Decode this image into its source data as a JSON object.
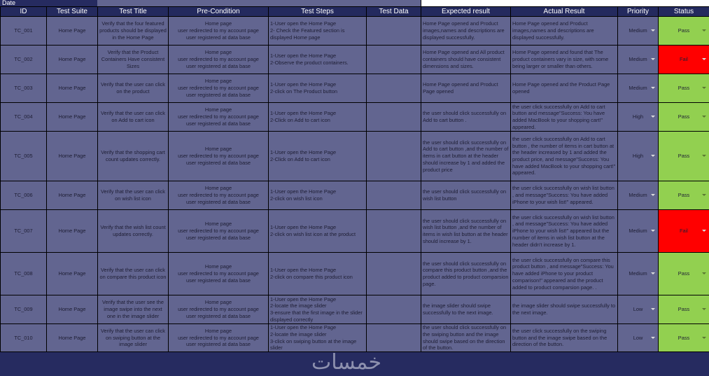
{
  "date_label": "Date",
  "colors": {
    "header": "#242a5e",
    "cell": "#626590",
    "pass": "#92d050",
    "fail": "#ff0000"
  },
  "columns": [
    "ID",
    "Test Suite",
    "Test Title",
    "Pre-Condition",
    "Test Steps",
    "Test Data",
    "Expected result",
    "Actual Result",
    "Priority",
    "Status"
  ],
  "rows": [
    {
      "id": "TC_001",
      "suite": "Home Page",
      "title": "Verify that the four featured products should be displayed in the Home Page",
      "pre": "Home page\nuser redirected to my account page\nuser registered at data base",
      "steps": "1-User open the Home Page\n2- Check the Featured section is displayed Home page",
      "data": "",
      "expected": "Home Page opened and Product images,names and descriptions are displayed successfully.",
      "actual": "Home Page opened and Product images,names and descriptions are displayed successfully.",
      "priority": "Medium",
      "status": "Pass"
    },
    {
      "id": "TC_002",
      "suite": "Home Page",
      "title": "Verify that the Product Containers Have consistent Sizes",
      "pre": "Home page\nuser redirected to my account page\nuser registered at data base",
      "steps": "1-User open the Home Page\n2-Observe the product containers.",
      "data": "",
      "expected": "Home Page opened and All product containers should have consistent dimensions and sizes.",
      "actual": "Home Page opened and found that The product containers vary in size, with some being larger or smaller than others.",
      "priority": "Medium",
      "status": "Fail"
    },
    {
      "id": "TC_003",
      "suite": "Home Page",
      "title": "Verify that the user can click on the product",
      "pre": "Home page\nuser redirected to my account page\nuser registered at data base",
      "steps": "1-User open the Home Page\n2-click on The Product button",
      "data": "",
      "expected": "Home Page opened and Product Page opened",
      "actual": "Home Page opened and the Product Page opened",
      "priority": "Medium",
      "status": "Pass"
    },
    {
      "id": "TC_004",
      "suite": "Home Page",
      "title": "Verify that the user can click on Add to cart  icon",
      "pre": "Home page\nuser redirected to my account page\nuser registered at data base",
      "steps": "1-User open the Home Page\n2-Click on Add to cart icon",
      "data": "",
      "expected": "the user should click successfully on Add to cart button .",
      "actual": "the user click successfully on Add to cart button and message\"Success: You have added MacBook to your shopping cart!\" appeared.",
      "priority": "High",
      "status": "Pass"
    },
    {
      "id": "TC_005",
      "suite": "Home Page",
      "title": "Verify that the shopping cart count updates correctly.",
      "pre": "Home page\nuser redirected to my account page\nuser registered at data base",
      "steps": "1-User open the Home Page\n2-Click on Add to cart icon",
      "data": "",
      "expected": "the user should click successfully on Add to cart button ,and the number of items in cart button at the header should increase by 1 and added the product price",
      "actual": "the user click successfully on Add to cart button , the number of items in cart button at the header increased by 1 and added the product price, and message\"Success: You have added MacBook to your shopping cart!\" appeared.",
      "priority": "High",
      "status": "Pass"
    },
    {
      "id": "TC_006",
      "suite": "Home Page",
      "title": "Verify that the user can click on wish list icon",
      "pre": "Home page\nuser redirected to my account page\nuser registered at data base",
      "steps": "1-User open the Home Page\n2-click on wish list icon",
      "data": "",
      "expected": "the user should click successfully on wish list button",
      "actual": "the user click successfully on wish list button , and message\"Success: You have added iPhone to your wish list!\" appeared.",
      "priority": "Medium",
      "status": "Pass"
    },
    {
      "id": "TC_007",
      "suite": "Home Page",
      "title": "Verify that the wish list count updates correctly.",
      "pre": "Home page\nuser redirected to my account page\nuser registered at data base",
      "steps": "1-User open the Home Page\n2-click on wish list icon at the product",
      "data": "",
      "expected": "the user should click successfully on wish list button ,and the number of items in wish list button at the header should increase by 1.",
      "actual": "the user click successfully on wish list button , and message\"Success: You have added iPhone to your wish list!\" appeared but the number of items in wish list button at the header didn't increase by 1.",
      "priority": "Medium",
      "status": "Fail"
    },
    {
      "id": "TC_008",
      "suite": "Home Page",
      "title": "Verify that the user can click on compare this product icon",
      "pre": "Home page\nuser redirected to my account page\nuser registered at data base",
      "steps": "1-User open the Home Page\n2-click on compare this product icon",
      "data": "",
      "expected": "the user should click successfully on compare this product button ,and the product added to product comparsion page.",
      "actual": "the user click successfully on compare this product button , and message\"Success: You have added iPhone to your product comparison!\" appeared and the product added to product comparsion page. .",
      "priority": "Medium",
      "status": "Pass"
    },
    {
      "id": "TC_009",
      "suite": "Home Page",
      "title": "Verify that the user see the image swipe into the next one in the image slider",
      "pre": "Home page\nuser redirected to my account page\nuser registered at data base",
      "steps": "1-User open the Home Page\n2-locate the image slider\n3-ensure that the first image in the slider displayed correctly",
      "data": "",
      "expected": "the image slider should swipe successfully to the next image.",
      "actual": "the image slider should swipe successfully to the next image.",
      "priority": "Low",
      "status": "Pass"
    },
    {
      "id": "TC_010",
      "suite": "Home Page",
      "title": "Verify that the user can click on swiping button at the image slider",
      "pre": "Home page\nuser redirected to my account page\nuser registered at data base",
      "steps": "1-User open the Home Page\n2-locate the image slider\n3-click on swiping button at the image slider",
      "data": "",
      "expected": "the user should click successfully on the swiping button and the image should swipe based on the direction of the button.",
      "actual": "the user click successfully on the swiping button and the image swipe based on the direction of the button.",
      "priority": "Low",
      "status": "Pass"
    }
  ],
  "watermark": "خمسات"
}
